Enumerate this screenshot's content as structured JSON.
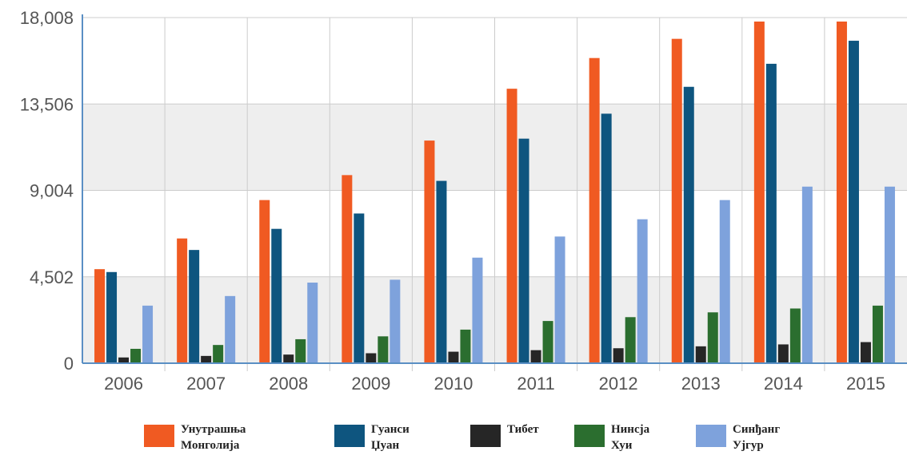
{
  "chart_data": {
    "type": "bar",
    "categories": [
      "2006",
      "2007",
      "2008",
      "2009",
      "2010",
      "2011",
      "2012",
      "2013",
      "2014",
      "2015"
    ],
    "series": [
      {
        "name": "Унутрашња\nМонголија",
        "color": "#f05a22",
        "values": [
          4900,
          6500,
          8500,
          9800,
          11600,
          14300,
          15900,
          16900,
          17800,
          17800
        ]
      },
      {
        "name": "Гуанси\nЏуан",
        "color": "#0e557f",
        "values": [
          4750,
          5900,
          7000,
          7800,
          9500,
          11700,
          13000,
          14400,
          15600,
          16800
        ]
      },
      {
        "name": "Тибет",
        "color": "#262626",
        "values": [
          300,
          380,
          450,
          520,
          600,
          680,
          780,
          880,
          980,
          1100
        ]
      },
      {
        "name": "Нинсја\nХуи",
        "color": "#2b6e2f",
        "values": [
          750,
          950,
          1250,
          1400,
          1750,
          2200,
          2400,
          2650,
          2850,
          3000
        ]
      },
      {
        "name": "Синђанг\nУјгур",
        "color": "#7ea2dc",
        "values": [
          3000,
          3500,
          4200,
          4350,
          5500,
          6600,
          7500,
          8500,
          9200,
          9200
        ]
      }
    ],
    "yticks": [
      "0",
      "4,502",
      "9,004",
      "13,506",
      "18,008"
    ],
    "ytick_values": [
      0,
      4502,
      9004,
      13506,
      18008
    ],
    "ylim": [
      0,
      18008
    ],
    "grid": true,
    "legend_position": "bottom"
  }
}
